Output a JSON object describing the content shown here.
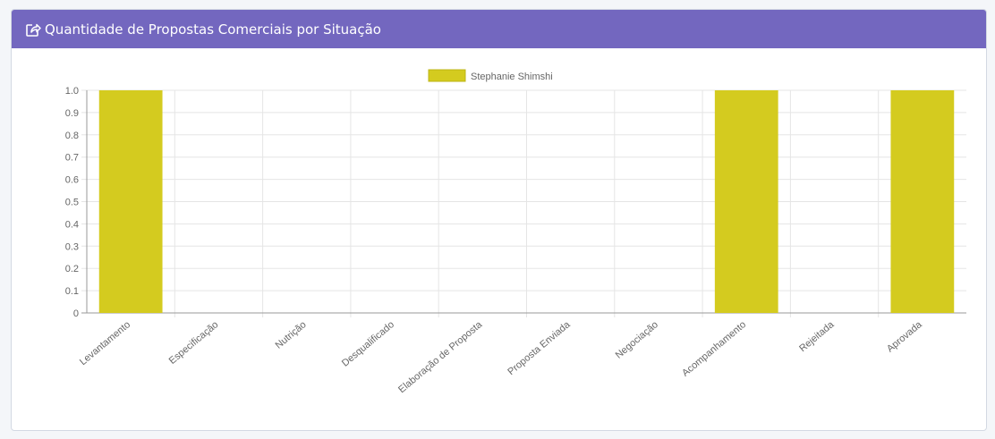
{
  "card": {
    "title": "Quantidade de Propostas Comerciais por Situação",
    "icon": "share-square-icon"
  },
  "colors": {
    "header_bg": "#7367bf",
    "bar": "#d4cb1f",
    "grid": "#e5e5e5",
    "axis": "#999999",
    "text": "#666666"
  },
  "chart_data": {
    "type": "bar",
    "title": "",
    "xlabel": "",
    "ylabel": "",
    "ylim": [
      0,
      1
    ],
    "y_ticks": [
      "1.0",
      "0.9",
      "0.8",
      "0.7",
      "0.6",
      "0.5",
      "0.4",
      "0.3",
      "0.2",
      "0.1",
      "0"
    ],
    "legend": "top",
    "grid": true,
    "categories": [
      "Levantamento",
      "Especificação",
      "Nutrição",
      "Desqualificado",
      "Elaboração de Proposta",
      "Proposta Enviada",
      "Negociação",
      "Acompanhamento",
      "Rejeitada",
      "Aprovada"
    ],
    "series": [
      {
        "name": "Stephanie Shimshi",
        "values": [
          1,
          0,
          0,
          0,
          0,
          0,
          0,
          1,
          0,
          1
        ]
      }
    ]
  }
}
